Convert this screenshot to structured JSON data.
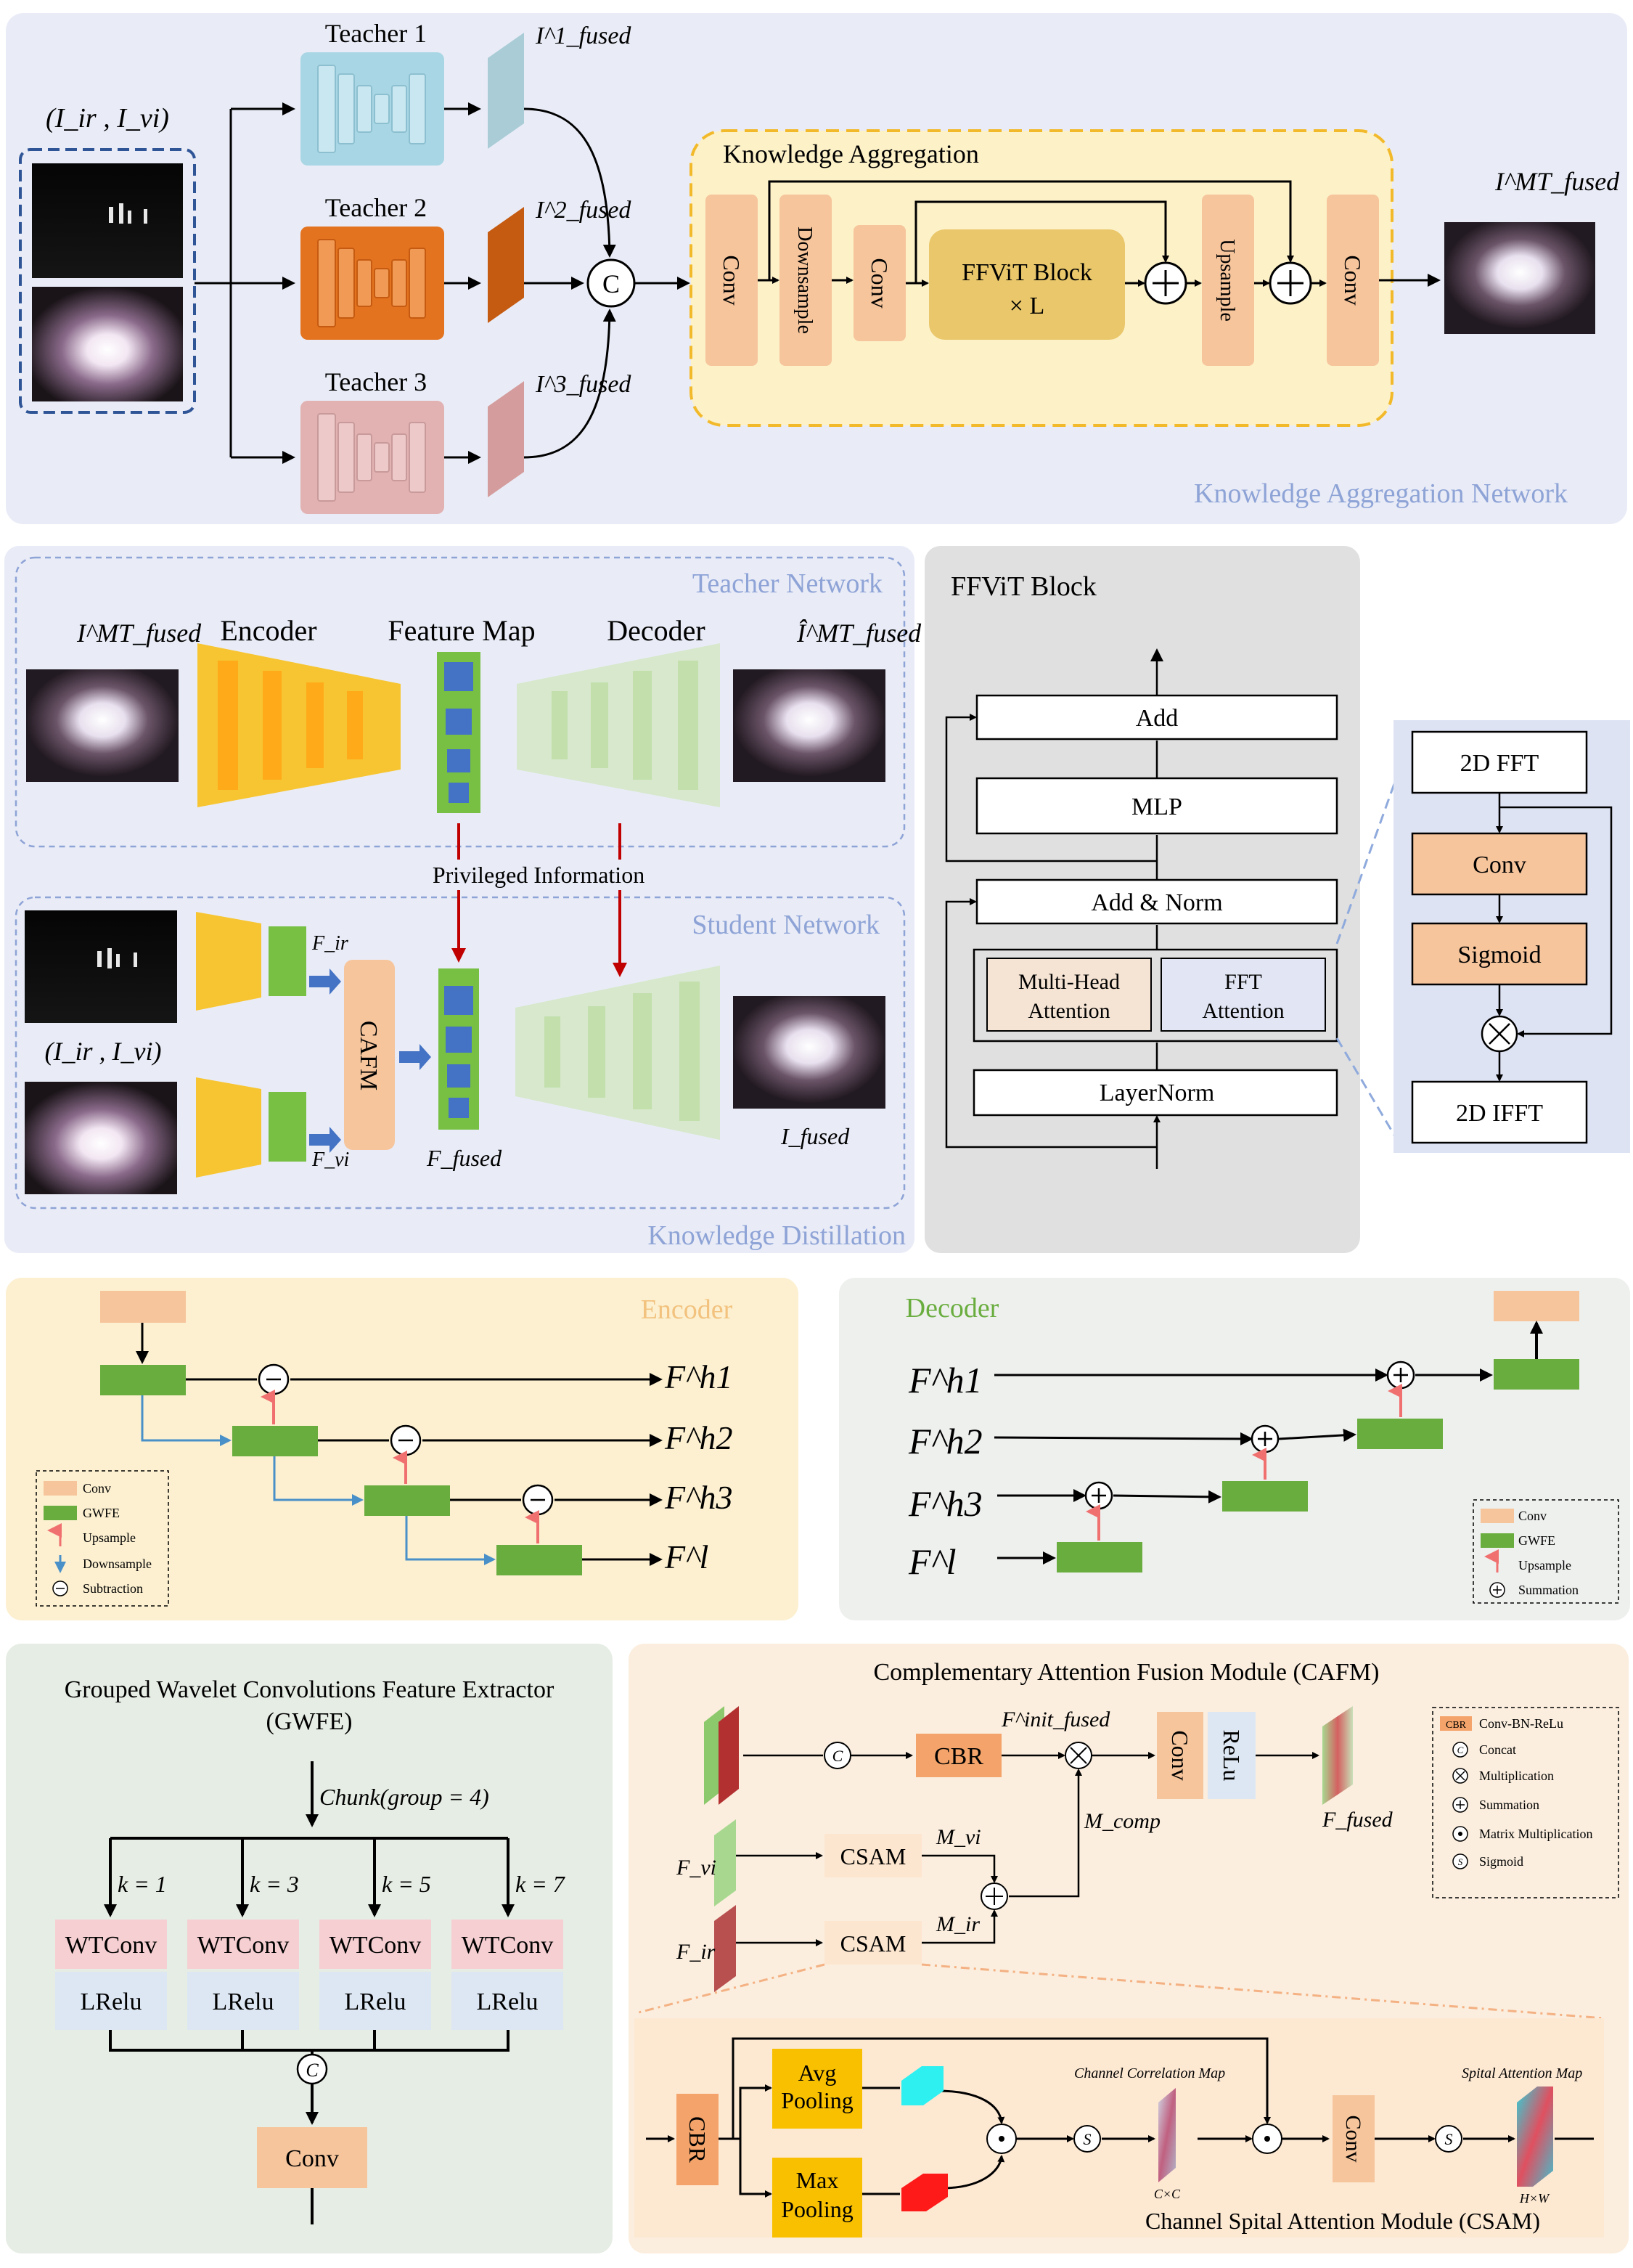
{
  "kan": {
    "input_label": "(I_ir , I_vi)",
    "teachers": [
      "Teacher 1",
      "Teacher 2",
      "Teacher 3"
    ],
    "teacher_outputs": [
      "I^1_fused",
      "I^2_fused",
      "I^3_fused"
    ],
    "concat_symbol": "C",
    "aggregation_title": "Knowledge Aggregation",
    "blocks": {
      "conv1": "Conv",
      "downsample": "Downsample",
      "conv2": "Conv",
      "ffvit_line1": "FFViT Block",
      "ffvit_line2": "× L",
      "upsample": "Upsample",
      "conv3": "Conv"
    },
    "output_label": "I^MT_fused",
    "panel_title": "Knowledge Aggregation Network"
  },
  "kd": {
    "teacher_title": "Teacher Network",
    "student_title": "Student Network",
    "panel_title": "Knowledge Distillation",
    "teacher_input": "I^MT_fused",
    "encoder": "Encoder",
    "feature_map": "Feature Map",
    "decoder": "Decoder",
    "teacher_output": "Î^MT_fused",
    "privileged": "Privileged Information",
    "student_input": "(I_ir , I_vi)",
    "f_ir": "F_ir",
    "f_vi": "F_vi",
    "cafm": "CAFM",
    "f_fused": "F_fused",
    "student_output": "I_fused"
  },
  "ffvit": {
    "title": "FFViT Block",
    "add": "Add",
    "mlp": "MLP",
    "add_norm": "Add & Norm",
    "mha_line1": "Multi-Head",
    "mha_line2": "Attention",
    "ffta_line1": "FFT",
    "ffta_line2": "Attention",
    "layernorm": "LayerNorm",
    "fft": "2D FFT",
    "conv": "Conv",
    "sigmoid": "Sigmoid",
    "ifft": "2D IFFT"
  },
  "encoder_panel": {
    "title": "Encoder",
    "outputs": [
      "F^h1",
      "F^h2",
      "F^h3",
      "F^l"
    ],
    "legend": [
      "Conv",
      "GWFE",
      "Upsample",
      "Downsample",
      "Subtraction"
    ]
  },
  "decoder_panel": {
    "title": "Decoder",
    "inputs": [
      "F^h1",
      "F^h2",
      "F^h3",
      "F^l"
    ],
    "legend": [
      "Conv",
      "GWFE",
      "Upsample",
      "Summation"
    ]
  },
  "gwfe": {
    "title_line1": "Grouped Wavelet Convolutions Feature Extractor",
    "title_line2": "(GWFE)",
    "chunk": "Chunk(group = 4)",
    "kernels": [
      "k = 1",
      "k = 3",
      "k = 5",
      "k = 7"
    ],
    "wtconv": "WTConv",
    "lrelu": "LRelu",
    "concat": "C",
    "conv": "Conv"
  },
  "cafm_panel": {
    "title": "Complementary Attention Fusion Module (CAFM)",
    "cbr": "CBR",
    "f_init": "F^init_fused",
    "conv": "Conv",
    "relu": "ReLu",
    "f_fused": "F_fused",
    "m_comp": "M_comp",
    "f_vi": "F_vi",
    "f_ir": "F_ir",
    "csam": "CSAM",
    "m_vi": "M_vi",
    "m_ir": "M_ir",
    "legend": [
      "Conv-BN-ReLu",
      "Concat",
      "Multiplication",
      "Summation",
      "Matrix Multiplication",
      "Sigmoid"
    ],
    "legend_cbr": "CBR",
    "csam_detail": {
      "cbr": "CBR",
      "avg1": "Avg",
      "avg2": "Pooling",
      "max1": "Max",
      "max2": "Pooling",
      "channel_map": "Channel  Correlation Map",
      "cxc": "C×C",
      "conv": "Conv",
      "spatial_map": "Spital  Attention Map",
      "hxw": "H×W",
      "title": "Channel Spital Attention Module (CSAM)"
    }
  },
  "colors": {
    "kan_bg": "#e9ecf7",
    "teacher1": "#a9d6e4",
    "teacher2": "#e3731f",
    "teacher3": "#e2b1b1",
    "conv_orange": "#f6c59c",
    "ffvit_yellow": "#e9c76a",
    "enc_yellow": "#f7c531",
    "gwfe_green": "#6aad3f",
    "wtconv_pink": "#f6cfd2",
    "lrelu_blue": "#dde7f3",
    "arrow_red": "#c00000",
    "title_blue": "#8ea3d6"
  }
}
